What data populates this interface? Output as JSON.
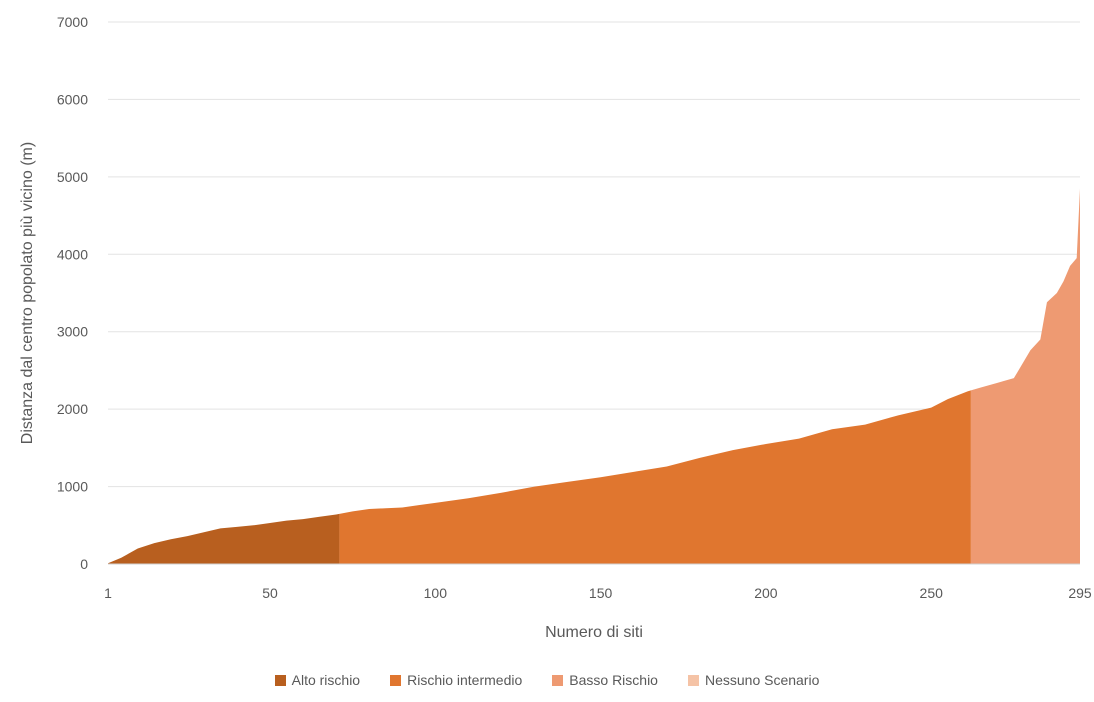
{
  "chart_data": {
    "type": "area",
    "title": "",
    "xlabel": "Numero di siti",
    "ylabel": "Distanza dal centro popolato più vicino (m)",
    "xlim": [
      1,
      295
    ],
    "ylim": [
      0,
      7000
    ],
    "x_ticks": [
      "1",
      "50",
      "100",
      "150",
      "200",
      "250",
      "295"
    ],
    "x_tick_values": [
      1,
      50,
      100,
      150,
      200,
      250,
      295
    ],
    "y_ticks": [
      "0",
      "1000",
      "2000",
      "3000",
      "4000",
      "5000",
      "6000",
      "7000"
    ],
    "y_tick_values": [
      0,
      1000,
      2000,
      3000,
      4000,
      5000,
      6000,
      7000
    ],
    "grid": "horizontal",
    "legend_position": "bottom",
    "curve": [
      [
        1,
        10
      ],
      [
        5,
        80
      ],
      [
        10,
        200
      ],
      [
        15,
        270
      ],
      [
        20,
        320
      ],
      [
        25,
        360
      ],
      [
        30,
        410
      ],
      [
        35,
        460
      ],
      [
        40,
        480
      ],
      [
        45,
        500
      ],
      [
        50,
        530
      ],
      [
        55,
        560
      ],
      [
        60,
        580
      ],
      [
        65,
        610
      ],
      [
        70,
        640
      ],
      [
        75,
        680
      ],
      [
        80,
        710
      ],
      [
        85,
        720
      ],
      [
        90,
        730
      ],
      [
        95,
        760
      ],
      [
        100,
        790
      ],
      [
        110,
        850
      ],
      [
        120,
        920
      ],
      [
        130,
        1000
      ],
      [
        140,
        1060
      ],
      [
        150,
        1120
      ],
      [
        160,
        1190
      ],
      [
        170,
        1260
      ],
      [
        180,
        1370
      ],
      [
        190,
        1470
      ],
      [
        200,
        1550
      ],
      [
        210,
        1620
      ],
      [
        220,
        1740
      ],
      [
        230,
        1800
      ],
      [
        240,
        1920
      ],
      [
        250,
        2020
      ],
      [
        255,
        2130
      ],
      [
        261,
        2230
      ],
      [
        265,
        2280
      ],
      [
        270,
        2340
      ],
      [
        275,
        2400
      ],
      [
        280,
        2760
      ],
      [
        283,
        2900
      ],
      [
        285,
        3380
      ],
      [
        288,
        3500
      ],
      [
        290,
        3650
      ],
      [
        292,
        3850
      ],
      [
        294,
        3950
      ],
      [
        295,
        4850
      ]
    ],
    "series": [
      {
        "name": "Alto rischio",
        "color": "#B85F1F",
        "x_range": [
          1,
          71
        ]
      },
      {
        "name": "Rischio intermedio",
        "color": "#E0762F",
        "x_range": [
          71,
          262
        ]
      },
      {
        "name": "Basso Rischio",
        "color": "#EE9A72",
        "x_range": [
          262,
          295
        ]
      },
      {
        "name": "Nessuno Scenario",
        "color": "#F5C3A6",
        "x_range": null
      }
    ]
  }
}
